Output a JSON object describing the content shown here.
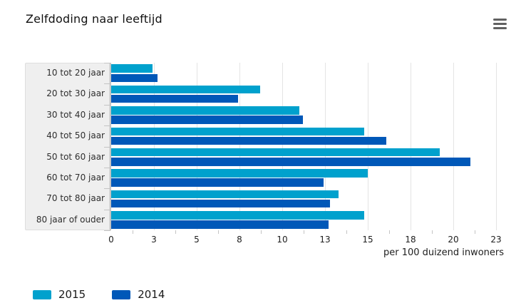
{
  "header": {
    "title": "Zelfdoding naar leeftijd",
    "menu_icon": "hamburger-menu-icon"
  },
  "chart_data": {
    "type": "bar",
    "orientation": "horizontal",
    "title": "Zelfdoding naar leeftijd",
    "xlabel": "per 100 duizend inwoners",
    "ylabel": "",
    "categories": [
      "10 tot 20 jaar",
      "20 tot 30 jaar",
      "30 tot 40 jaar",
      "40 tot 50 jaar",
      "50 tot 60 jaar",
      "60 tot 70 jaar",
      "70 tot 80 jaar",
      "80 jaar of ouder"
    ],
    "series": [
      {
        "name": "2015",
        "color": "#00a1cd",
        "values": [
          2.4,
          8.7,
          11.0,
          14.8,
          19.2,
          15.0,
          13.3,
          14.8
        ]
      },
      {
        "name": "2014",
        "color": "#0058b8",
        "values": [
          2.7,
          7.4,
          11.2,
          16.1,
          21.0,
          12.4,
          12.8,
          12.7
        ]
      }
    ],
    "x_ticks": [
      {
        "value": 0,
        "label": "0"
      },
      {
        "value": 2.5,
        "label": "3"
      },
      {
        "value": 5,
        "label": "5"
      },
      {
        "value": 7.5,
        "label": "8"
      },
      {
        "value": 10,
        "label": "10"
      },
      {
        "value": 12.5,
        "label": "13"
      },
      {
        "value": 15,
        "label": "15"
      },
      {
        "value": 17.5,
        "label": "18"
      },
      {
        "value": 20,
        "label": "20"
      },
      {
        "value": 22.5,
        "label": "23"
      }
    ],
    "xlim": [
      0,
      23.25
    ],
    "grid": true,
    "legend_position": "bottom-left"
  },
  "colors": {
    "grid": "#e4e4e4",
    "axis": "#c4c4c4",
    "panel_background": "#efefef",
    "series_2015": "#00a1cd",
    "series_2014": "#0058b8"
  }
}
